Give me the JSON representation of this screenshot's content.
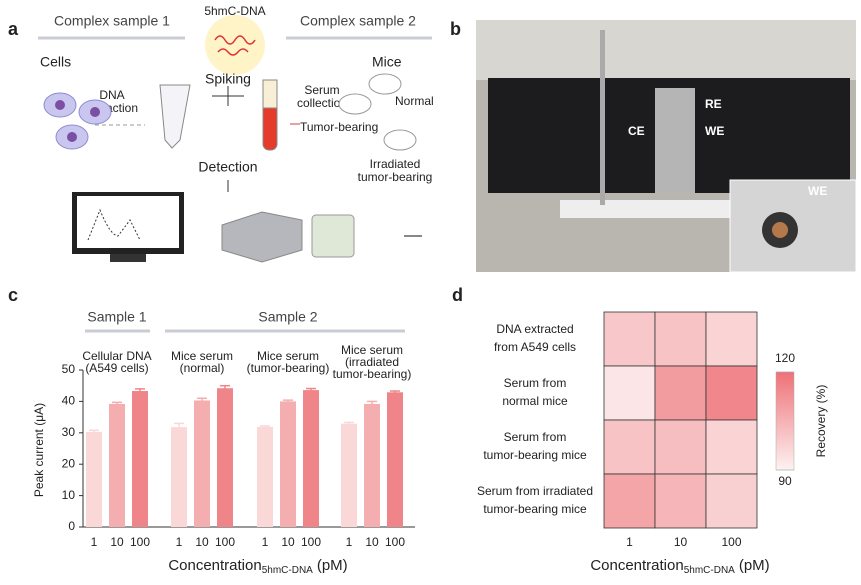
{
  "panel_a": {
    "letter": "a",
    "complex_sample_1": "Complex sample 1",
    "dna_label": "5hmC-DNA",
    "complex_sample_2": "Complex sample 2",
    "cells": "Cells",
    "spiking": "Spiking",
    "mice": "Mice",
    "dna_extraction": [
      "DNA",
      "extraction"
    ],
    "serum_collection": [
      "Serum",
      "collection"
    ],
    "normal": "Normal",
    "tumor_bearing": "Tumor-bearing",
    "irradiated": [
      "Irradiated",
      "tumor-bearing"
    ],
    "detection": "Detection"
  },
  "panel_b": {
    "letter": "b",
    "re": "RE",
    "ce": "CE",
    "we": "WE",
    "inset_we": "WE"
  },
  "chart_data": [
    {
      "type": "bar",
      "letter": "c",
      "group_headers": [
        {
          "label": "Sample 1"
        },
        {
          "label": "Sample 2"
        }
      ],
      "groups": [
        {
          "label": [
            "Cellular DNA",
            "(A549 cells)"
          ],
          "categories": [
            "1",
            "10",
            "100"
          ],
          "values": [
            30.3,
            39.2,
            43.3
          ],
          "errors": [
            0.5,
            0.5,
            0.7
          ]
        },
        {
          "label": [
            "Mice serum",
            "(normal)"
          ],
          "categories": [
            "1",
            "10",
            "100"
          ],
          "values": [
            31.8,
            40.3,
            44.2
          ],
          "errors": [
            1.2,
            0.7,
            0.8
          ]
        },
        {
          "label": [
            "Mice serum",
            "(tumor-bearing)"
          ],
          "categories": [
            "1",
            "10",
            "100"
          ],
          "values": [
            31.9,
            40.0,
            43.6
          ],
          "errors": [
            0.3,
            0.4,
            0.5
          ]
        },
        {
          "label": [
            "Mice serum",
            "(irradiated",
            "tumor-bearing)"
          ],
          "categories": [
            "1",
            "10",
            "100"
          ],
          "values": [
            32.9,
            39.2,
            42.9
          ],
          "errors": [
            0.4,
            0.8,
            0.4
          ]
        }
      ],
      "colors": [
        "#fad8d8",
        "#f5aeb0",
        "#ef8489"
      ],
      "ylabel": "Peak current (μA)",
      "xlabel": {
        "main": "Concentration",
        "sub": "5hmC-DNA",
        "unit": "(pM)"
      },
      "ylim": [
        0,
        50
      ],
      "yticks": [
        0,
        10,
        20,
        30,
        40,
        50
      ]
    },
    {
      "type": "heatmap",
      "letter": "d",
      "rows": [
        [
          "DNA extracted",
          "from A549 cells"
        ],
        [
          "Serum from",
          "normal mice"
        ],
        [
          "Serum from",
          "tumor-bearing mice"
        ],
        [
          "Serum from irradiated",
          "tumor-bearing mice"
        ]
      ],
      "columns": [
        "1",
        "10",
        "100"
      ],
      "values": [
        [
          100,
          101,
          97
        ],
        [
          93,
          110,
          115
        ],
        [
          101,
          102,
          97
        ],
        [
          108,
          104,
          98
        ]
      ],
      "clim": [
        90,
        120
      ],
      "cticks": [
        90,
        120
      ],
      "colors": [
        "#fdf2f2",
        "#ee7177"
      ],
      "colorbar_label": "Recovery (%)",
      "xlabel": {
        "main": "Concentration",
        "sub": "5hmC-DNA",
        "unit": "(pM)"
      }
    }
  ]
}
